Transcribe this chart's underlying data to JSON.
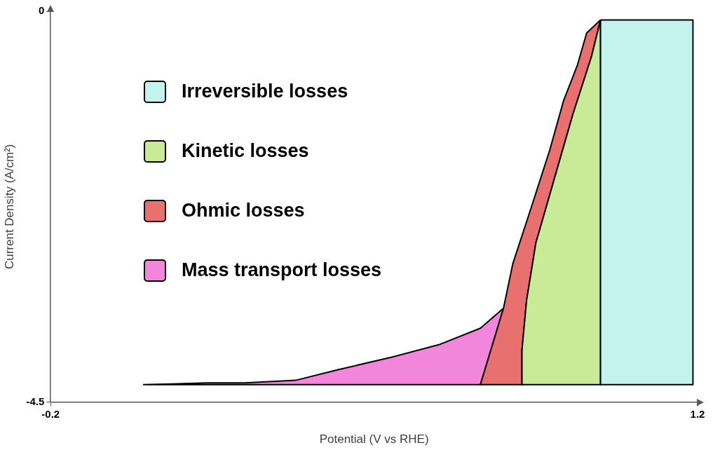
{
  "chart_data": {
    "type": "area",
    "xlabel": "Potential (V vs RHE)",
    "ylabel": "Current Density (A/cm²)",
    "xlim": [
      -0.2,
      1.2
    ],
    "xticks": [
      -0.2,
      1.2
    ],
    "ylim": [
      -4.5,
      0
    ],
    "yticks": [
      -4.5,
      0
    ],
    "grid": false,
    "legend": "left",
    "marker": "none",
    "series": [
      {
        "name": "Irreversible losses",
        "color": "#c3f3ec",
        "x": [
          0.99,
          1.19,
          1.19,
          0.99,
          0.99
        ],
        "values": [
          -0.1,
          -0.1,
          -4.3,
          -4.3,
          -0.1
        ]
      },
      {
        "name": "Kinetic losses",
        "color": "#c9eb98",
        "x": [
          0.99,
          0.97,
          0.93,
          0.89,
          0.85,
          0.83,
          0.82,
          0.82,
          0.99,
          0.99
        ],
        "values": [
          -0.1,
          -0.53,
          -1.19,
          -1.93,
          -2.67,
          -3.33,
          -3.9,
          -4.3,
          -4.3,
          -0.1
        ]
      },
      {
        "name": "Ohmic losses",
        "color": "#e8716f",
        "x": [
          0.99,
          0.96,
          0.94,
          0.91,
          0.88,
          0.84,
          0.8,
          0.78,
          0.73,
          0.82,
          0.82,
          0.83,
          0.85,
          0.89,
          0.93,
          0.97,
          0.99
        ],
        "values": [
          -0.1,
          -0.25,
          -0.62,
          -1.03,
          -1.6,
          -2.26,
          -2.91,
          -3.42,
          -4.3,
          -4.3,
          -3.9,
          -3.33,
          -2.67,
          -1.93,
          -1.19,
          -0.53,
          -0.1
        ]
      },
      {
        "name": "Mass transport losses",
        "color": "#f285dc",
        "x": [
          0.0,
          0.14,
          0.22,
          0.33,
          0.42,
          0.54,
          0.64,
          0.73,
          0.78,
          0.73,
          0.0
        ],
        "values": [
          -4.3,
          -4.28,
          -4.28,
          -4.25,
          -4.13,
          -3.98,
          -3.84,
          -3.65,
          -3.42,
          -4.3,
          -4.3
        ]
      }
    ]
  }
}
